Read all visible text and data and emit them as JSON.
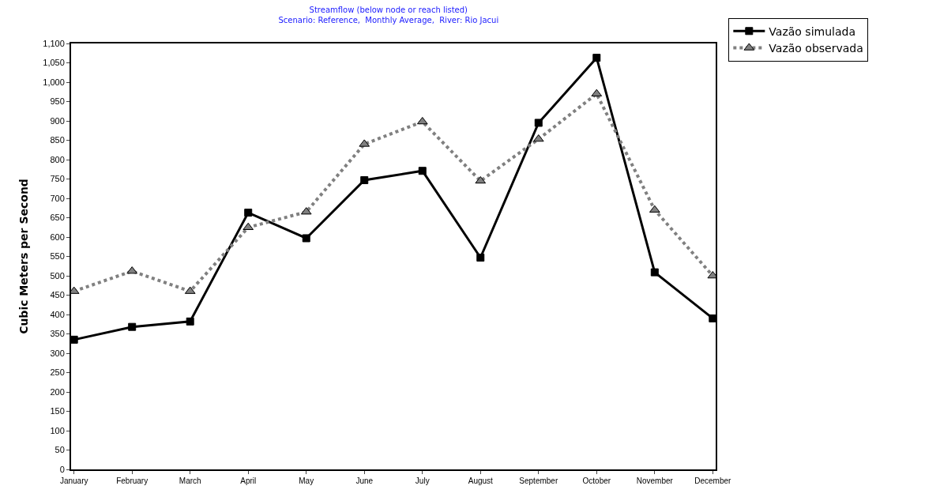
{
  "chart_data": {
    "type": "line",
    "title": "Streamflow (below node or reach listed)",
    "subtitle": "Scenario: Reference,  Monthly Average,  River: Rio Jacui",
    "ylabel": "Cubic Meters per Second",
    "categories": [
      "January",
      "February",
      "March",
      "April",
      "May",
      "June",
      "July",
      "August",
      "September",
      "October",
      "November",
      "December"
    ],
    "series": [
      {
        "name": "Vazão simulada",
        "color": "#000000",
        "marker": "square",
        "line_style": "solid",
        "values": [
          335,
          368,
          382,
          663,
          597,
          747,
          771,
          547,
          895,
          1063,
          509,
          390
        ]
      },
      {
        "name": "Vazão observada",
        "color": "#808080",
        "marker": "triangle",
        "line_style": "dotted",
        "values": [
          460,
          512,
          460,
          625,
          665,
          840,
          898,
          745,
          853,
          970,
          670,
          500
        ]
      }
    ],
    "ylim": [
      0,
      1100
    ],
    "yticks": [
      0,
      50,
      100,
      150,
      200,
      250,
      300,
      350,
      400,
      450,
      500,
      550,
      600,
      650,
      700,
      750,
      800,
      850,
      900,
      950,
      {
        "value": 1000,
        "label": "1,000"
      },
      {
        "value": 1050,
        "label": "1,050"
      },
      {
        "value": 1100,
        "label": "1,100"
      }
    ],
    "legend": "top right"
  }
}
